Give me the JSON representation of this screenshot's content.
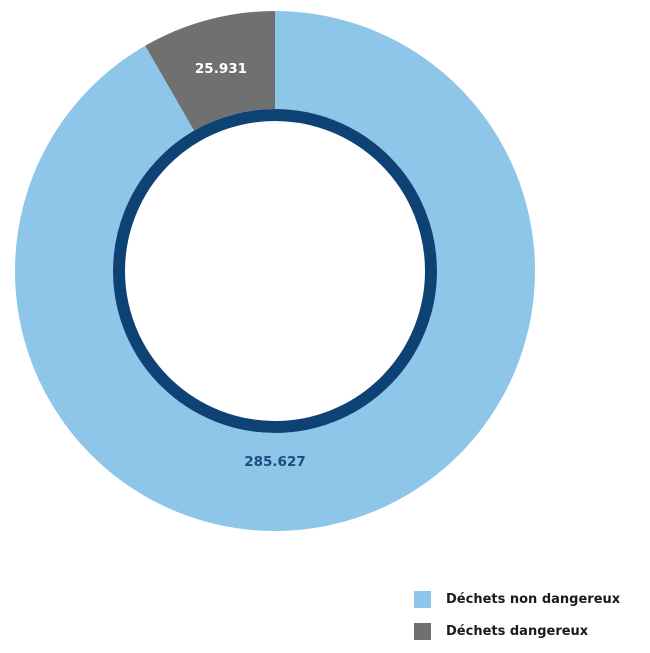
{
  "chart_data": {
    "type": "pie",
    "variant": "donut",
    "categories": [
      "Déchets non dangereux",
      "Déchets dangereux"
    ],
    "values": [
      285627,
      25931
    ],
    "labels": [
      "285.627",
      "25.931"
    ],
    "colors": [
      "#8ec6ea",
      "#707070"
    ],
    "label_colors": [
      "#1d4b7f",
      "#ffffff"
    ],
    "inner_ring_color": "#0f4274",
    "legend": {
      "position": "bottom-right",
      "items": [
        {
          "label": "Déchets non dangereux",
          "color": "#8ec6ea"
        },
        {
          "label": "Déchets dangereux",
          "color": "#707070"
        }
      ]
    }
  }
}
